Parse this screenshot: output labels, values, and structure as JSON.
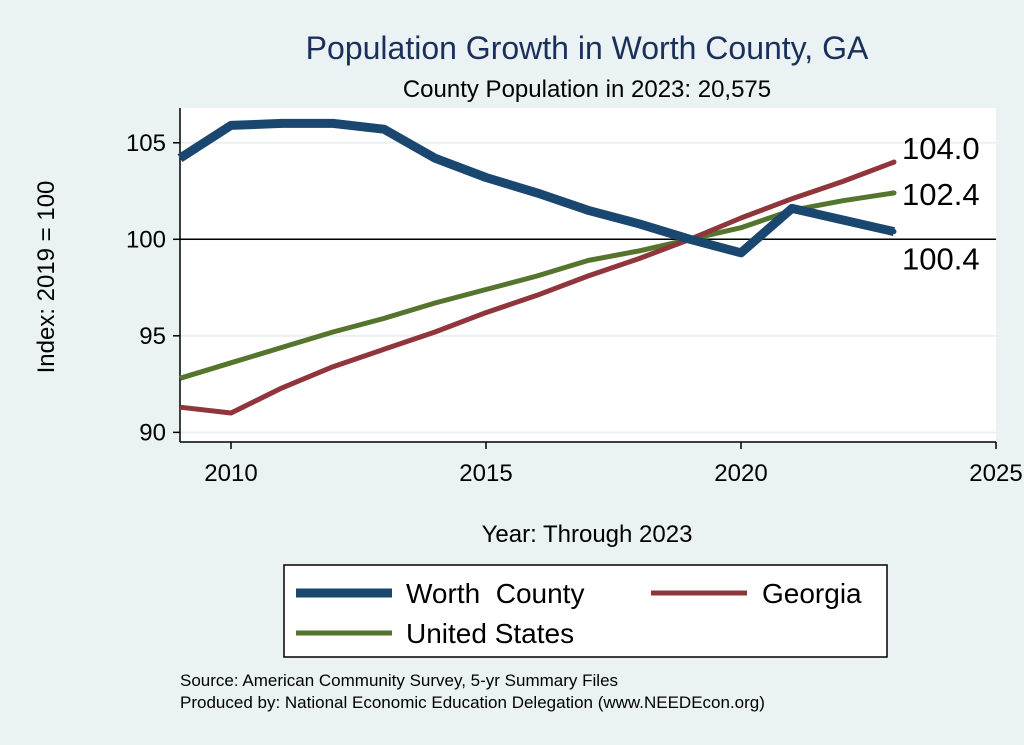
{
  "chart_data": {
    "type": "line",
    "title": "Population Growth in Worth County, GA",
    "subtitle": "County Population in 2023: 20,575",
    "xlabel": "Year: Through 2023",
    "ylabel": "Index: 2019 = 100",
    "xlim": [
      2009,
      2025
    ],
    "ylim": [
      89.5,
      106.8
    ],
    "xticks": [
      2010,
      2015,
      2020,
      2025
    ],
    "yticks": [
      90,
      95,
      100,
      105
    ],
    "reference_line": 100,
    "grid": true,
    "x": [
      2009,
      2010,
      2011,
      2012,
      2013,
      2014,
      2015,
      2016,
      2017,
      2018,
      2019,
      2020,
      2021,
      2022,
      2023
    ],
    "series": [
      {
        "name": "Worth  County",
        "color": "#1a476f",
        "values": [
          104.2,
          105.9,
          106.0,
          106.0,
          105.7,
          104.2,
          103.2,
          102.4,
          101.5,
          100.8,
          100.0,
          99.3,
          101.6,
          101.0,
          100.4
        ],
        "end_label": "100.4"
      },
      {
        "name": "Georgia",
        "color": "#90353b",
        "values": [
          91.3,
          91.0,
          92.3,
          93.4,
          94.3,
          95.2,
          96.2,
          97.1,
          98.1,
          99.0,
          100.0,
          101.1,
          102.1,
          103.0,
          104.0
        ],
        "end_label": "104.0"
      },
      {
        "name": "United States",
        "color": "#55752f",
        "values": [
          92.8,
          93.6,
          94.4,
          95.2,
          95.9,
          96.7,
          97.4,
          98.1,
          98.9,
          99.4,
          100.0,
          100.6,
          101.5,
          102.0,
          102.4
        ],
        "end_label": "102.4"
      }
    ],
    "legend": {
      "position": "bottom",
      "entries": [
        "Worth  County",
        "Georgia",
        "United States"
      ]
    }
  },
  "source": {
    "line1": "Source: American Community Survey, 5-yr Summary Files",
    "line2": "Produced by: National Economic Education Delegation (www.NEEDEcon.org)"
  }
}
